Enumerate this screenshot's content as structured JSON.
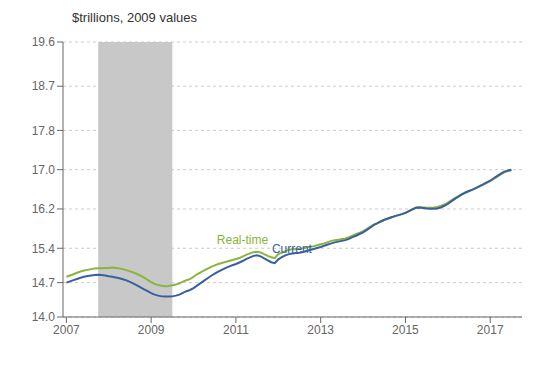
{
  "chart_data": {
    "type": "line",
    "title": "$trillions, 2009 values",
    "ylim": [
      14.0,
      19.6
    ],
    "yticks": [
      {
        "value": 14.0,
        "label": "14.0"
      },
      14.7,
      15.4,
      16.2,
      {
        "value": 17.0,
        "label": "17.0"
      },
      17.8,
      18.7,
      19.6
    ],
    "xlim": [
      2006.92,
      2017.75
    ],
    "xticks": [
      2007,
      2009,
      2011,
      2013,
      2015,
      2017
    ],
    "grid": true,
    "shaded_ranges": [
      {
        "x1": 2007.75,
        "x2": 2009.5,
        "color": "#c8c8c8"
      }
    ],
    "x": [
      2007.0,
      2007.083,
      2007.167,
      2007.25,
      2007.333,
      2007.417,
      2007.5,
      2007.583,
      2007.667,
      2007.75,
      2007.833,
      2007.917,
      2008.0,
      2008.083,
      2008.167,
      2008.25,
      2008.333,
      2008.417,
      2008.5,
      2008.583,
      2008.667,
      2008.75,
      2008.833,
      2008.917,
      2009.0,
      2009.083,
      2009.167,
      2009.25,
      2009.333,
      2009.417,
      2009.5,
      2009.583,
      2009.667,
      2009.75,
      2009.833,
      2009.917,
      2010.0,
      2010.083,
      2010.167,
      2010.25,
      2010.333,
      2010.417,
      2010.5,
      2010.583,
      2010.667,
      2010.75,
      2010.833,
      2010.917,
      2011.0,
      2011.083,
      2011.167,
      2011.25,
      2011.333,
      2011.417,
      2011.5,
      2011.583,
      2011.667,
      2011.75,
      2011.833,
      2011.917,
      2012.0,
      2012.083,
      2012.167,
      2012.25,
      2012.333,
      2012.417,
      2012.5,
      2012.583,
      2012.667,
      2012.75,
      2012.833,
      2012.917,
      2013.0,
      2013.083,
      2013.167,
      2013.25,
      2013.333,
      2013.417,
      2013.5,
      2013.583,
      2013.667,
      2013.75,
      2013.833,
      2013.917,
      2014.0,
      2014.083,
      2014.167,
      2014.25,
      2014.333,
      2014.417,
      2014.5,
      2014.583,
      2014.667,
      2014.75,
      2014.833,
      2014.917,
      2015.0,
      2015.083,
      2015.167,
      2015.25,
      2015.333,
      2015.417,
      2015.5,
      2015.583,
      2015.667,
      2015.75,
      2015.833,
      2015.917,
      2016.0,
      2016.083,
      2016.167,
      2016.25,
      2016.333,
      2016.417,
      2016.5,
      2016.583,
      2016.667,
      2016.75,
      2016.833,
      2016.917,
      2017.0,
      2017.083,
      2017.167,
      2017.25,
      2017.333,
      2017.417,
      2017.5
    ],
    "series": [
      {
        "name": "Real-time",
        "color": "#8ab43c",
        "label_x": 2010.55,
        "label_y": 15.44,
        "values": [
          14.82,
          14.845,
          14.87,
          14.9,
          14.925,
          14.945,
          14.96,
          14.975,
          14.99,
          14.995,
          14.995,
          15.0,
          15.0,
          15.01,
          15.0,
          14.99,
          14.975,
          14.955,
          14.93,
          14.905,
          14.875,
          14.84,
          14.8,
          14.755,
          14.71,
          14.675,
          14.65,
          14.635,
          14.628,
          14.63,
          14.645,
          14.66,
          14.685,
          14.72,
          14.75,
          14.77,
          14.82,
          14.87,
          14.91,
          14.95,
          14.985,
          15.02,
          15.05,
          15.08,
          15.1,
          15.12,
          15.14,
          15.16,
          15.18,
          15.2,
          15.235,
          15.27,
          15.295,
          15.32,
          15.33,
          15.315,
          15.28,
          15.245,
          15.215,
          15.2,
          15.28,
          15.31,
          15.34,
          15.37,
          15.38,
          15.385,
          15.39,
          15.4,
          15.415,
          15.43,
          15.44,
          15.46,
          15.48,
          15.5,
          15.525,
          15.55,
          15.565,
          15.575,
          15.59,
          15.6,
          15.625,
          15.655,
          15.685,
          15.715,
          15.75,
          15.79,
          15.835,
          15.88,
          15.91,
          15.945,
          15.975,
          16.0,
          16.025,
          16.055,
          16.075,
          16.095,
          16.12,
          16.155,
          16.195,
          16.23,
          16.235,
          16.23,
          16.225,
          16.225,
          16.23,
          16.24,
          16.26,
          16.29,
          16.33,
          16.375,
          16.42,
          16.46,
          16.5,
          16.535,
          16.565,
          16.595,
          16.625,
          16.66,
          16.695,
          16.73,
          16.765,
          16.81,
          16.86,
          16.905,
          16.945,
          16.97,
          16.99
        ]
      },
      {
        "name": "Current",
        "color": "#3a5fa0",
        "label_x": 2011.85,
        "label_y": 15.27,
        "values": [
          14.7,
          14.725,
          14.75,
          14.775,
          14.8,
          14.82,
          14.835,
          14.845,
          14.855,
          14.86,
          14.855,
          14.845,
          14.83,
          14.82,
          14.805,
          14.79,
          14.77,
          14.745,
          14.715,
          14.68,
          14.645,
          14.605,
          14.565,
          14.525,
          14.485,
          14.455,
          14.435,
          14.42,
          14.415,
          14.415,
          14.42,
          14.435,
          14.455,
          14.49,
          14.525,
          14.55,
          14.59,
          14.64,
          14.69,
          14.74,
          14.79,
          14.84,
          14.885,
          14.925,
          14.96,
          14.995,
          15.025,
          15.055,
          15.08,
          15.11,
          15.145,
          15.185,
          15.215,
          15.245,
          15.255,
          15.235,
          15.195,
          15.155,
          15.115,
          15.095,
          15.175,
          15.22,
          15.255,
          15.28,
          15.295,
          15.305,
          15.31,
          15.325,
          15.345,
          15.365,
          15.385,
          15.405,
          15.425,
          15.45,
          15.475,
          15.5,
          15.52,
          15.535,
          15.55,
          15.565,
          15.59,
          15.625,
          15.655,
          15.69,
          15.725,
          15.77,
          15.82,
          15.87,
          15.905,
          15.945,
          15.98,
          16.005,
          16.03,
          16.055,
          16.075,
          16.095,
          16.12,
          16.155,
          16.19,
          16.225,
          16.23,
          16.22,
          16.21,
          16.205,
          16.205,
          16.21,
          16.23,
          16.265,
          16.305,
          16.355,
          16.405,
          16.45,
          16.495,
          16.535,
          16.565,
          16.595,
          16.63,
          16.665,
          16.7,
          16.74,
          16.775,
          16.825,
          16.875,
          16.92,
          16.96,
          16.985,
          17.0
        ]
      }
    ]
  }
}
